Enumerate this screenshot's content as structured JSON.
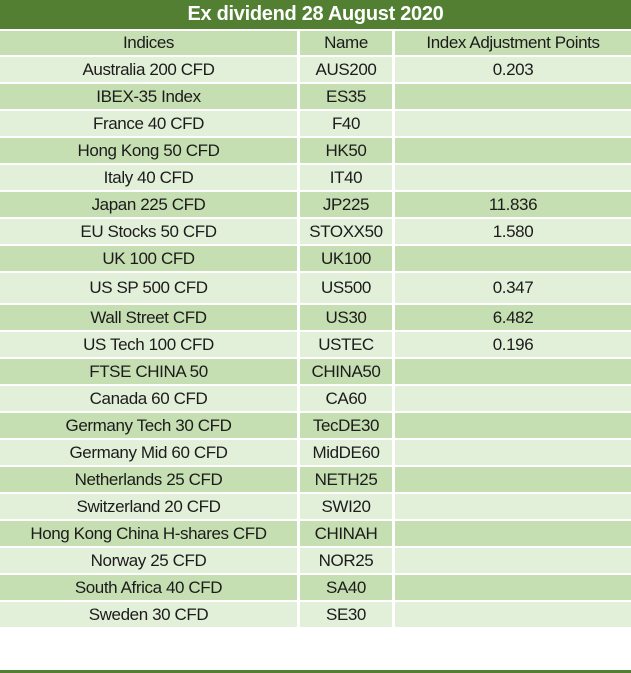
{
  "title": "Ex dividend 28 August 2020",
  "colors": {
    "title_bg": "#527f32",
    "title_text": "#ffffff",
    "header_bg": "#c5deb2",
    "row_light": "#e2efd9",
    "row_medium": "#c5deb2",
    "gridline": "#ffffff",
    "cell_text": "#1c1c1c"
  },
  "table": {
    "columns": [
      "Indices",
      "Name",
      "Index Adjustment Points"
    ],
    "rows": [
      {
        "indices": "Australia 200 CFD",
        "name": "AUS200",
        "points": "0.203"
      },
      {
        "indices": "IBEX-35 Index",
        "name": "ES35",
        "points": ""
      },
      {
        "indices": "France 40 CFD",
        "name": "F40",
        "points": ""
      },
      {
        "indices": "Hong Kong 50 CFD",
        "name": "HK50",
        "points": ""
      },
      {
        "indices": "Italy 40 CFD",
        "name": "IT40",
        "points": ""
      },
      {
        "indices": "Japan 225 CFD",
        "name": "JP225",
        "points": "11.836"
      },
      {
        "indices": "EU Stocks 50 CFD",
        "name": "STOXX50",
        "points": "1.580"
      },
      {
        "indices": "UK 100 CFD",
        "name": "UK100",
        "points": ""
      },
      {
        "indices": "US SP 500 CFD",
        "name": "US500",
        "points": "0.347"
      },
      {
        "indices": "Wall Street CFD",
        "name": "US30",
        "points": "6.482"
      },
      {
        "indices": "US Tech 100 CFD",
        "name": "USTEC",
        "points": "0.196"
      },
      {
        "indices": "FTSE CHINA 50",
        "name": "CHINA50",
        "points": ""
      },
      {
        "indices": "Canada 60 CFD",
        "name": "CA60",
        "points": ""
      },
      {
        "indices": "Germany Tech 30 CFD",
        "name": "TecDE30",
        "points": ""
      },
      {
        "indices": "Germany Mid 60 CFD",
        "name": "MidDE60",
        "points": ""
      },
      {
        "indices": "Netherlands 25 CFD",
        "name": "NETH25",
        "points": ""
      },
      {
        "indices": "Switzerland 20 CFD",
        "name": "SWI20",
        "points": ""
      },
      {
        "indices": "Hong Kong China H-shares CFD",
        "name": "CHINAH",
        "points": ""
      },
      {
        "indices": "Norway 25 CFD",
        "name": "NOR25",
        "points": ""
      },
      {
        "indices": "South Africa 40 CFD",
        "name": "SA40",
        "points": ""
      },
      {
        "indices": "Sweden 30 CFD",
        "name": "SE30",
        "points": ""
      }
    ]
  }
}
